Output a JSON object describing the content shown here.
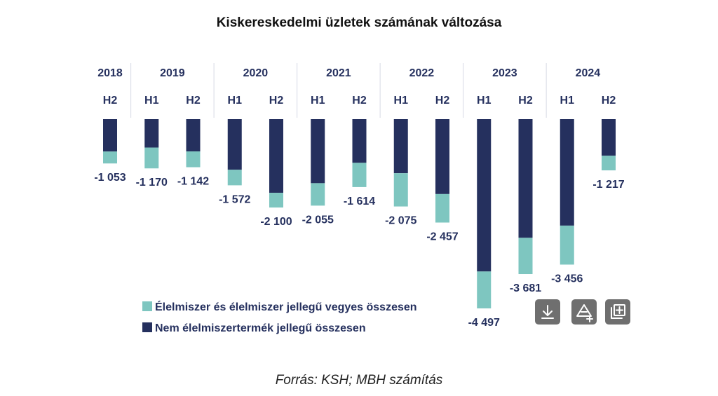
{
  "chart_data": {
    "type": "bar",
    "stacked": true,
    "title": "Kiskereskedelmi üzletek számának változása",
    "categories": [
      {
        "year": "2018",
        "half": "H2"
      },
      {
        "year": "2019",
        "half": "H1"
      },
      {
        "year": "2019",
        "half": "H2"
      },
      {
        "year": "2020",
        "half": "H1"
      },
      {
        "year": "2020",
        "half": "H2"
      },
      {
        "year": "2021",
        "half": "H1"
      },
      {
        "year": "2021",
        "half": "H2"
      },
      {
        "year": "2022",
        "half": "H1"
      },
      {
        "year": "2022",
        "half": "H2"
      },
      {
        "year": "2023",
        "half": "H1"
      },
      {
        "year": "2023",
        "half": "H2"
      },
      {
        "year": "2024",
        "half": "H1"
      },
      {
        "year": "2024",
        "half": "H2"
      }
    ],
    "years": [
      "2018",
      "2019",
      "2020",
      "2021",
      "2022",
      "2023",
      "2024"
    ],
    "series": [
      {
        "name": "Nem élelmiszertermék jellegű összesen",
        "color": "#25305e",
        "values": [
          -770,
          -675,
          -767,
          -1203,
          -1750,
          -1522,
          -1038,
          -1285,
          -1780,
          -3620,
          -2820,
          -2530,
          -870
        ]
      },
      {
        "name": "Élelmiszer és élelmiszer jellegű vegyes összesen",
        "color": "#7ec6c0",
        "values": [
          -283,
          -495,
          -375,
          -369,
          -350,
          -533,
          -576,
          -790,
          -677,
          -877,
          -861,
          -926,
          -347
        ]
      }
    ],
    "totals": [
      -1053,
      -1170,
      -1142,
      -1572,
      -2100,
      -2055,
      -1614,
      -2075,
      -2457,
      -4497,
      -3681,
      -3456,
      -1217
    ],
    "total_labels": [
      "-1 053",
      "-1 170",
      "-1 142",
      "-1 572",
      "-2 100",
      "-2 055",
      "-1 614",
      "-2 075",
      "-2 457",
      "-4 497",
      "-3 681",
      "-3 456",
      "-1 217"
    ],
    "ylim": [
      -4800,
      0
    ],
    "grid": false,
    "legend_position": "bottom-left"
  },
  "source": "Forrás: KSH; MBH számítás",
  "toolbar": [
    {
      "name": "download-icon"
    },
    {
      "name": "add-chart-icon"
    },
    {
      "name": "add-to-collection-icon"
    }
  ],
  "colors": {
    "dark_navy": "#25305e",
    "teal": "#7ec6c0",
    "header_divider": "#d6d9e4",
    "tool_bg": "#6f6f6f"
  }
}
